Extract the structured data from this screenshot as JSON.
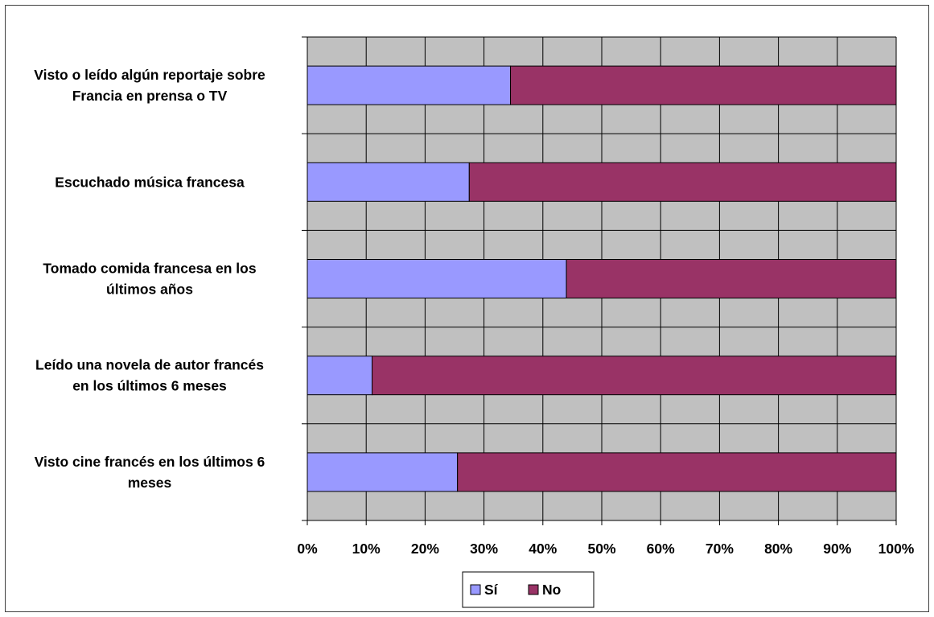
{
  "chart_data": {
    "type": "bar",
    "orientation": "horizontal",
    "stacked": "percent",
    "categories": [
      [
        "Visto o leído algún reportaje sobre",
        "Francia en prensa o TV"
      ],
      [
        "Escuchado música francesa"
      ],
      [
        "Tomado comida francesa en los",
        "últimos años"
      ],
      [
        "Leído una novela de autor francés",
        "en los últimos 6 meses"
      ],
      [
        "Visto cine francés en los últimos 6",
        "meses"
      ]
    ],
    "series": [
      {
        "name": "Sí",
        "color": "#9999FF",
        "values": [
          34.5,
          27.5,
          44,
          11,
          25.5
        ]
      },
      {
        "name": "No",
        "color": "#993366",
        "values": [
          65.5,
          72.5,
          56,
          89,
          74.5
        ]
      }
    ],
    "x_ticks": [
      "0%",
      "10%",
      "20%",
      "30%",
      "40%",
      "50%",
      "60%",
      "70%",
      "80%",
      "90%",
      "100%"
    ],
    "xlim": [
      0,
      100
    ],
    "grid": true,
    "plot_background": "#C0C0C0",
    "legend_position": "bottom",
    "title": "",
    "xlabel": "",
    "ylabel": ""
  }
}
